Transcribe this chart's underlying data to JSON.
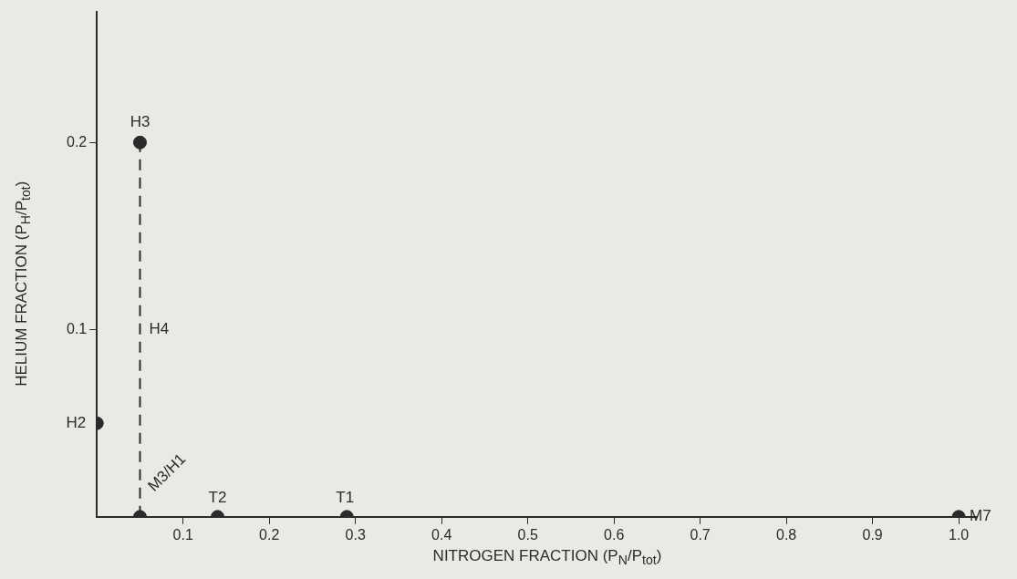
{
  "chart_data": {
    "type": "scatter",
    "xlabel": "NITROGEN FRACTION (P$_{N}$/P$_{tot}$)",
    "ylabel": "HELIUM FRACTION (P$_{H}$/P$_{tot}$)",
    "x": [
      0,
      0.05,
      0.05,
      0.14,
      0.29,
      1.0
    ],
    "marker": "circle",
    "series": [
      {
        "color": "#2b2b2b",
        "values": [
          0.05,
          0.2,
          0,
          0,
          0,
          0
        ]
      },
      {
        "type": "line",
        "x": [
          0.05,
          0.05
        ],
        "values": [
          0,
          0.2
        ],
        "color": "#2b2b2b",
        "line_style": "dashed",
        "marker": "none"
      }
    ],
    "xlim": [
      0,
      1.02
    ],
    "ylim": [
      0,
      0.27
    ],
    "xticks": [
      0.1,
      0.2,
      0.3,
      0.4,
      0.5,
      0.6,
      0.7,
      0.8,
      0.9,
      {
        "value": 1,
        "label": "1.0"
      }
    ],
    "yticks": [
      0.1,
      0.2
    ],
    "grid": false,
    "legend": false,
    "annotations": [
      {
        "text": "H2",
        "x": 0,
        "y": 0.05
      },
      {
        "text": "H3",
        "x": 0.05,
        "y": 0.2
      },
      {
        "text": "H4",
        "x": 0.05,
        "y": 0.1
      },
      {
        "text": "M3/H1",
        "x": 0.05,
        "y": 0
      },
      {
        "text": "T2",
        "x": 0.14,
        "y": 0
      },
      {
        "text": "T1",
        "x": 0.29,
        "y": 0
      },
      {
        "text": "M7",
        "x": 1.0,
        "y": 0
      }
    ]
  }
}
